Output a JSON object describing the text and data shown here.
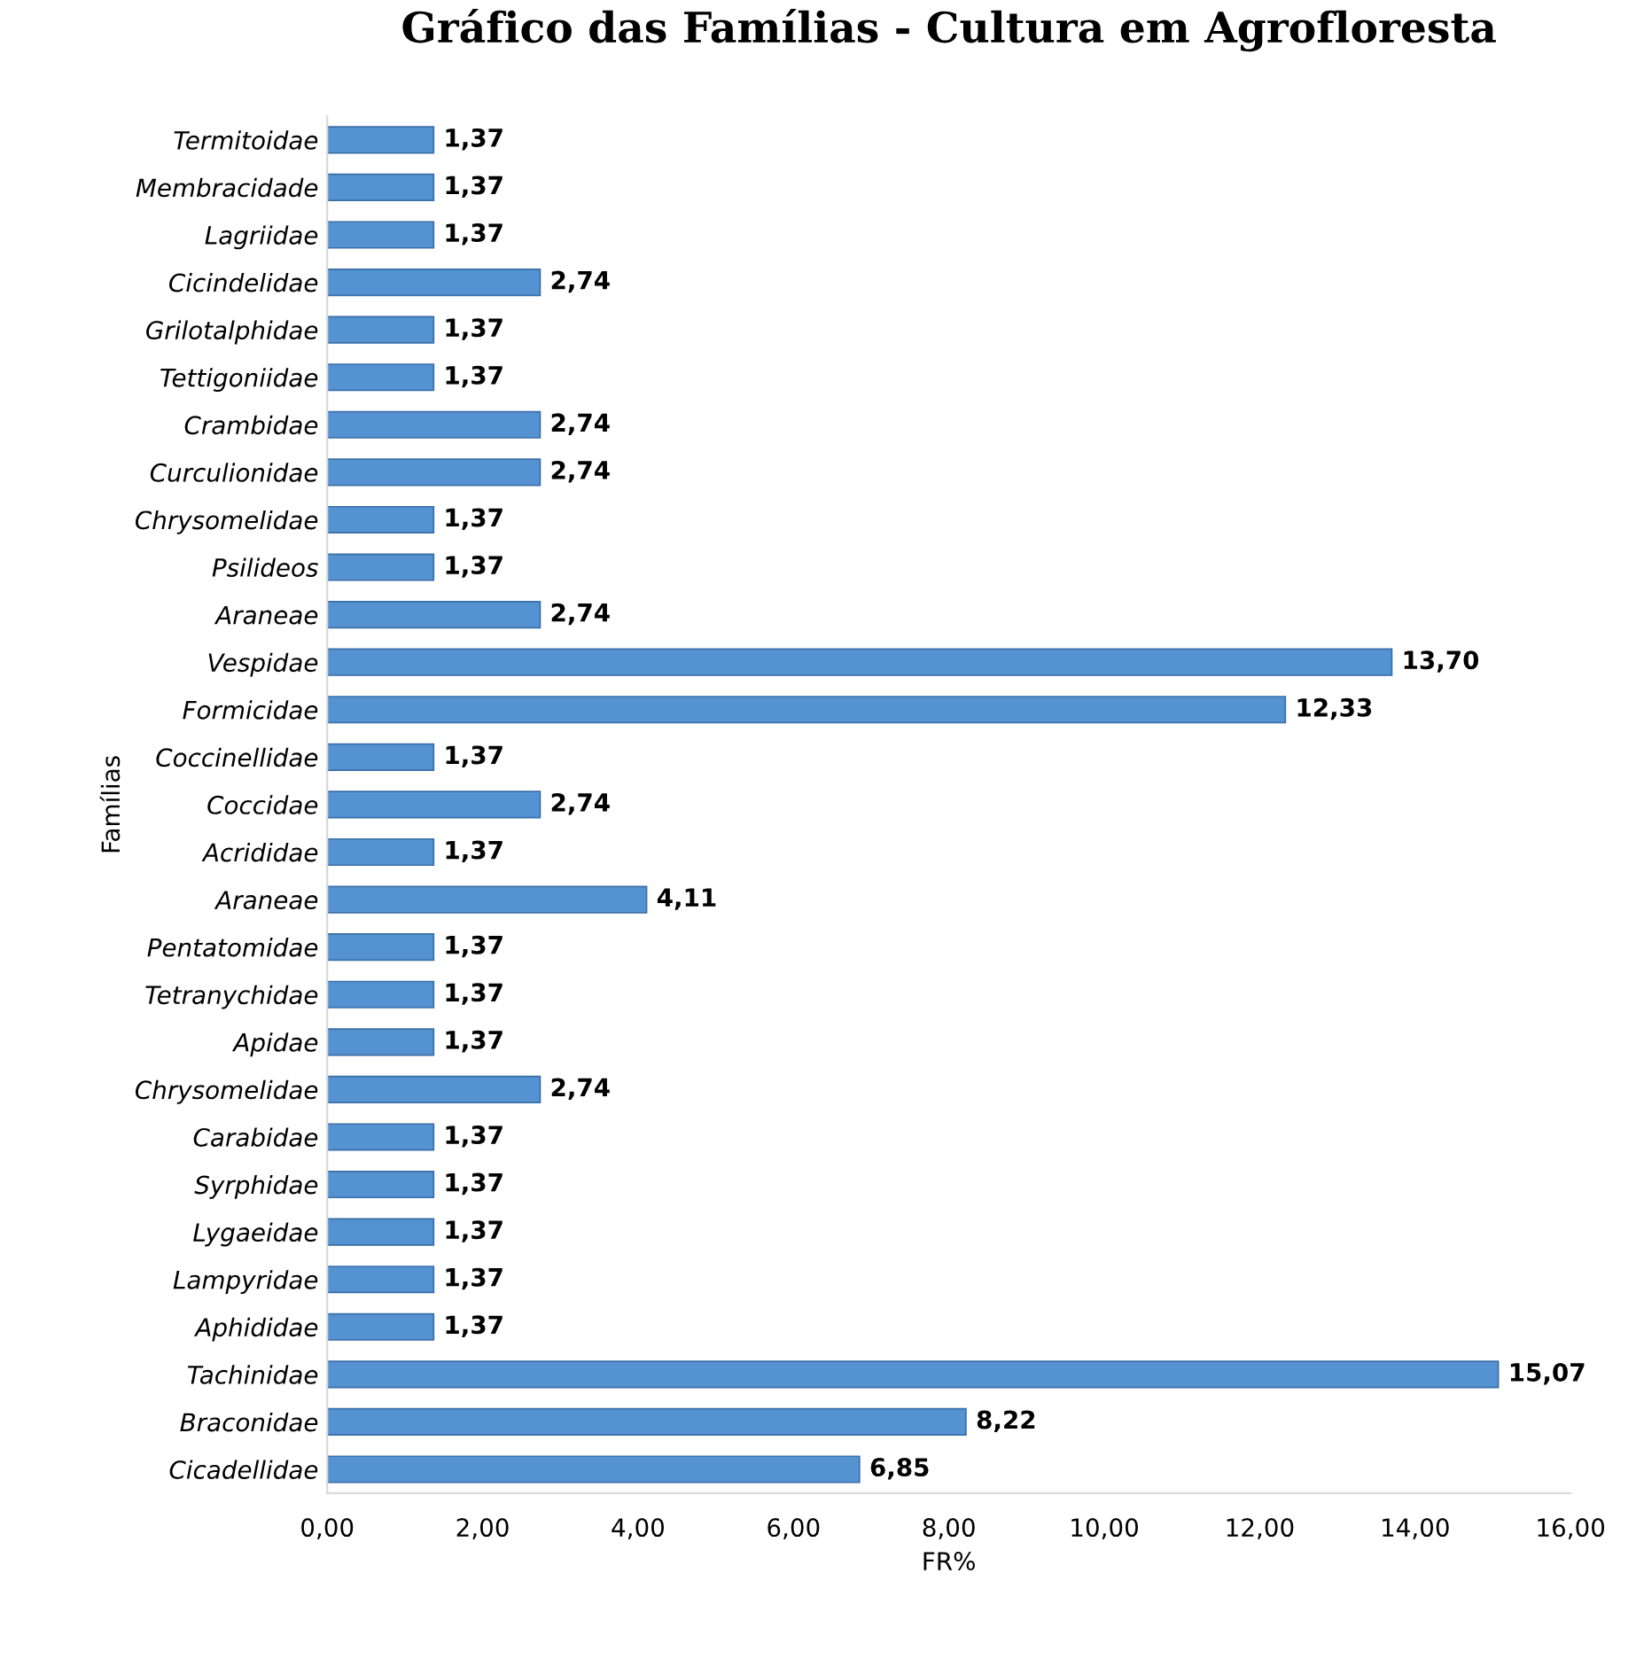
{
  "chart_data": {
    "type": "bar",
    "orientation": "horizontal",
    "title": "Gráfico das Famílias - Cultura em Agrofloresta",
    "xlabel": "FR%",
    "ylabel": "Famílias",
    "categories": [
      "Termitoidae",
      "Membracidade",
      "Lagriidae",
      "Cicindelidae",
      "Grilotalphidae",
      "Tettigoniidae",
      "Crambidae",
      "Curculionidae",
      "Chrysomelidae",
      "Psilideos",
      "Araneae",
      "Vespidae",
      "Formicidae",
      "Coccinellidae",
      "Coccidae",
      "Acrididae",
      "Araneae",
      "Pentatomidae",
      "Tetranychidae",
      "Apidae",
      "Chrysomelidae",
      "Carabidae",
      "Syrphidae",
      "Lygaeidae",
      "Lampyridae",
      "Aphididae",
      "Tachinidae",
      "Braconidae",
      "Cicadellidae"
    ],
    "values": [
      1.37,
      1.37,
      1.37,
      2.74,
      1.37,
      1.37,
      2.74,
      2.74,
      1.37,
      1.37,
      2.74,
      13.7,
      12.33,
      1.37,
      2.74,
      1.37,
      4.11,
      1.37,
      1.37,
      1.37,
      2.74,
      1.37,
      1.37,
      1.37,
      1.37,
      1.37,
      15.07,
      8.22,
      6.85
    ],
    "value_labels": [
      "1,37",
      "1,37",
      "1,37",
      "2,74",
      "1,37",
      "1,37",
      "2,74",
      "2,74",
      "1,37",
      "1,37",
      "2,74",
      "13,70",
      "12,33",
      "1,37",
      "2,74",
      "1,37",
      "4,11",
      "1,37",
      "1,37",
      "1,37",
      "2,74",
      "1,37",
      "1,37",
      "1,37",
      "1,37",
      "1,37",
      "15,07",
      "8,22",
      "6,85"
    ],
    "color": "#5592d2",
    "xlim": [
      0,
      16
    ],
    "xticks": [
      {
        "value": 0,
        "label": "0,00"
      },
      {
        "value": 2,
        "label": "2,00"
      },
      {
        "value": 4,
        "label": "4,00"
      },
      {
        "value": 6,
        "label": "6,00"
      },
      {
        "value": 8,
        "label": "8,00"
      },
      {
        "value": 10,
        "label": "10,00"
      },
      {
        "value": 12,
        "label": "12,00"
      },
      {
        "value": 14,
        "label": "14,00"
      },
      {
        "value": 16,
        "label": "16,00"
      }
    ],
    "grid": false,
    "legend": false
  }
}
